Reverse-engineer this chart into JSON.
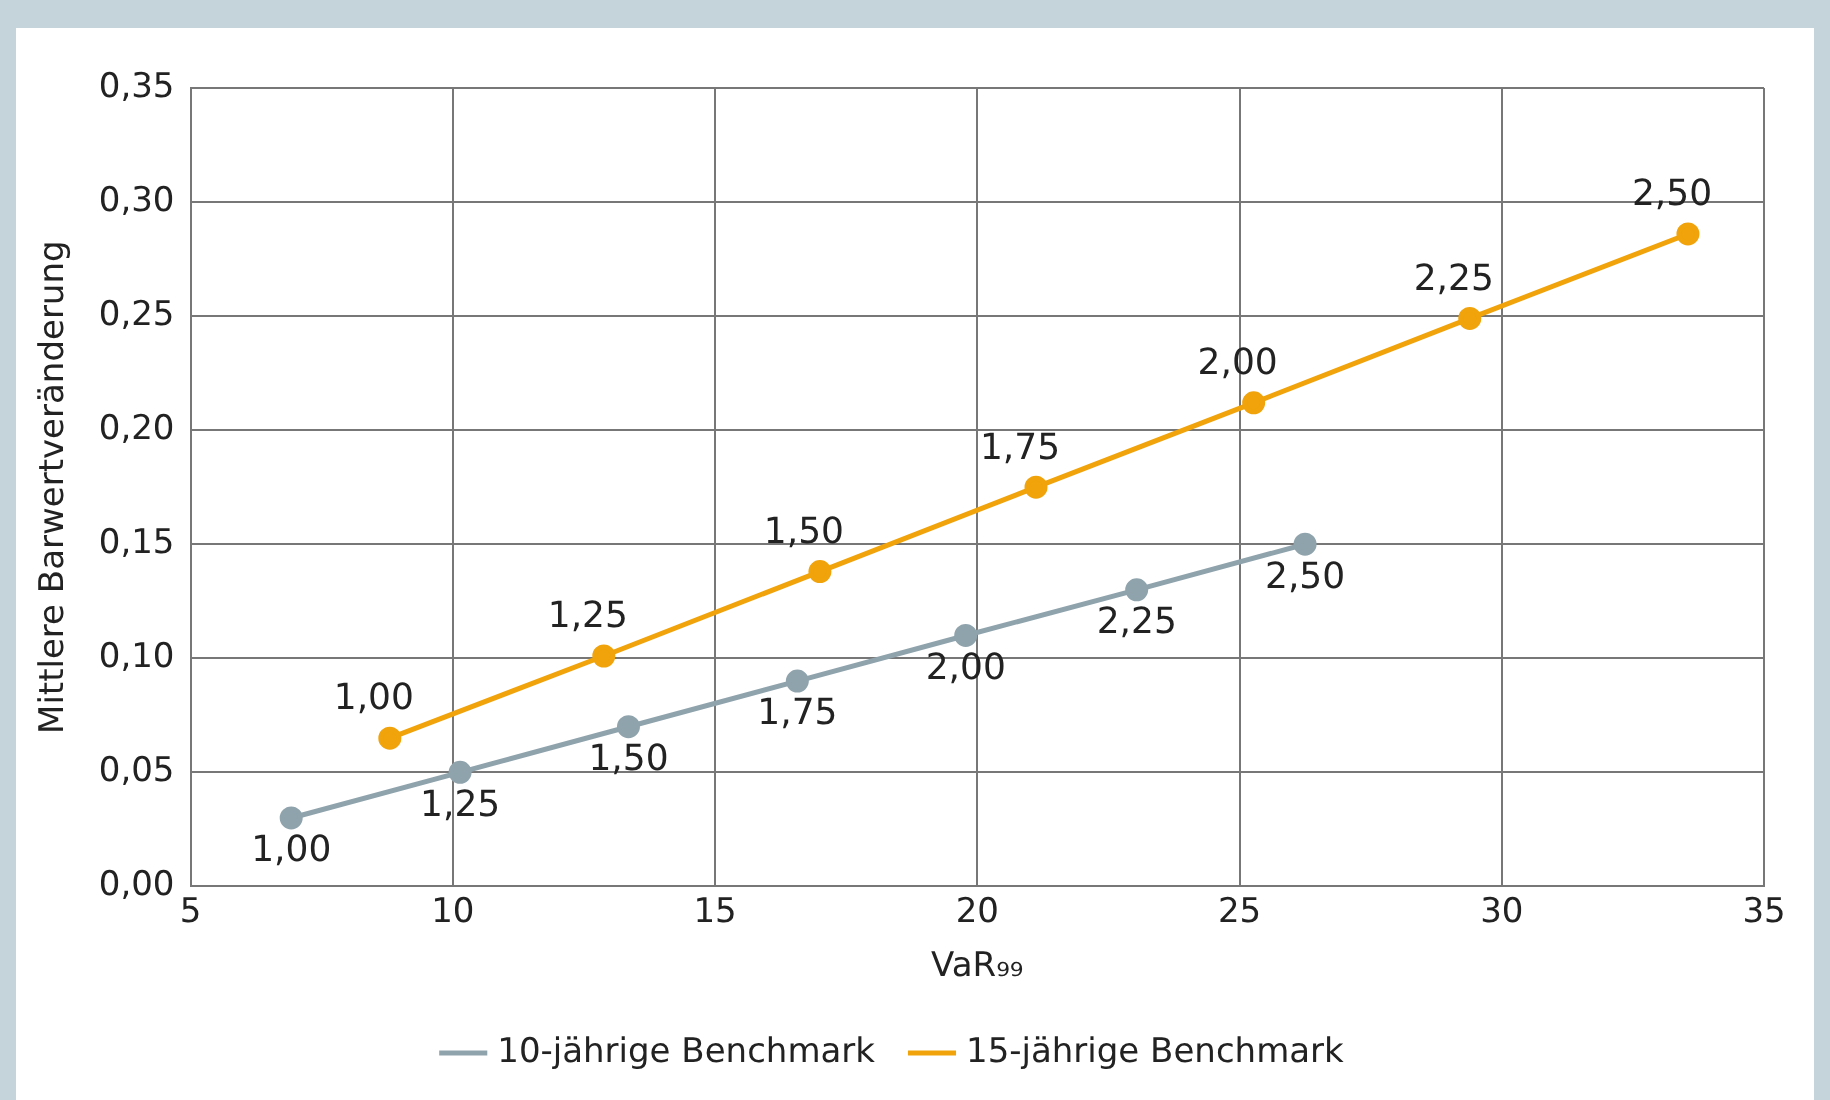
{
  "chart_data": {
    "type": "line",
    "xlabel": "VaR₉₉",
    "ylabel": "Mittlere Barwertveränderung",
    "series": [
      {
        "name": "10-jährige Benchmark",
        "color": "#8fa3ad",
        "x": [
          6.92,
          10.14,
          13.35,
          16.57,
          19.78,
          23.04,
          26.25
        ],
        "values": [
          0.03,
          0.05,
          0.07,
          0.09,
          0.11,
          0.13,
          0.15
        ]
      },
      {
        "name": "15-jährige Benchmark",
        "color": "#f0a30a",
        "x": [
          8.8,
          12.88,
          17.0,
          21.12,
          25.27,
          29.39,
          33.55
        ],
        "values": [
          0.065,
          0.101,
          0.138,
          0.175,
          0.212,
          0.249,
          0.286
        ]
      }
    ],
    "xlim": [
      5,
      35
    ],
    "xticks": [
      5,
      10,
      15,
      20,
      25,
      30,
      35
    ],
    "ylim": [
      0,
      0.35
    ],
    "yticks": [
      {
        "value": 0,
        "label": "0,00"
      },
      {
        "value": 0.05,
        "label": "0,05"
      },
      {
        "value": 0.1,
        "label": "0,10"
      },
      {
        "value": 0.15,
        "label": "0,15"
      },
      {
        "value": 0.2,
        "label": "0,20"
      },
      {
        "value": 0.25,
        "label": "0,25"
      },
      {
        "value": 0.3,
        "label": "0,30"
      },
      {
        "value": 0.35,
        "label": "0,35"
      }
    ],
    "annotations": [
      {
        "text": "1,00",
        "x": 6.92,
        "y": 0.03
      },
      {
        "text": "1,25",
        "x": 10.14,
        "y": 0.05
      },
      {
        "text": "1,50",
        "x": 13.35,
        "y": 0.07
      },
      {
        "text": "1,75",
        "x": 16.57,
        "y": 0.09
      },
      {
        "text": "2,00",
        "x": 19.78,
        "y": 0.11
      },
      {
        "text": "2,25",
        "x": 23.04,
        "y": 0.13
      },
      {
        "text": "2,50",
        "x": 26.25,
        "y": 0.15
      },
      {
        "text": "1,00",
        "x": 8.8,
        "y": 0.065
      },
      {
        "text": "1,25",
        "x": 12.88,
        "y": 0.101
      },
      {
        "text": "1,50",
        "x": 17.0,
        "y": 0.138
      },
      {
        "text": "1,75",
        "x": 21.12,
        "y": 0.175
      },
      {
        "text": "2,00",
        "x": 25.27,
        "y": 0.212
      },
      {
        "text": "2,25",
        "x": 29.39,
        "y": 0.249
      },
      {
        "text": "2,50",
        "x": 33.55,
        "y": 0.286
      }
    ],
    "grid": true,
    "legend": "bottom",
    "marker": "circle",
    "line_style": "solid"
  }
}
